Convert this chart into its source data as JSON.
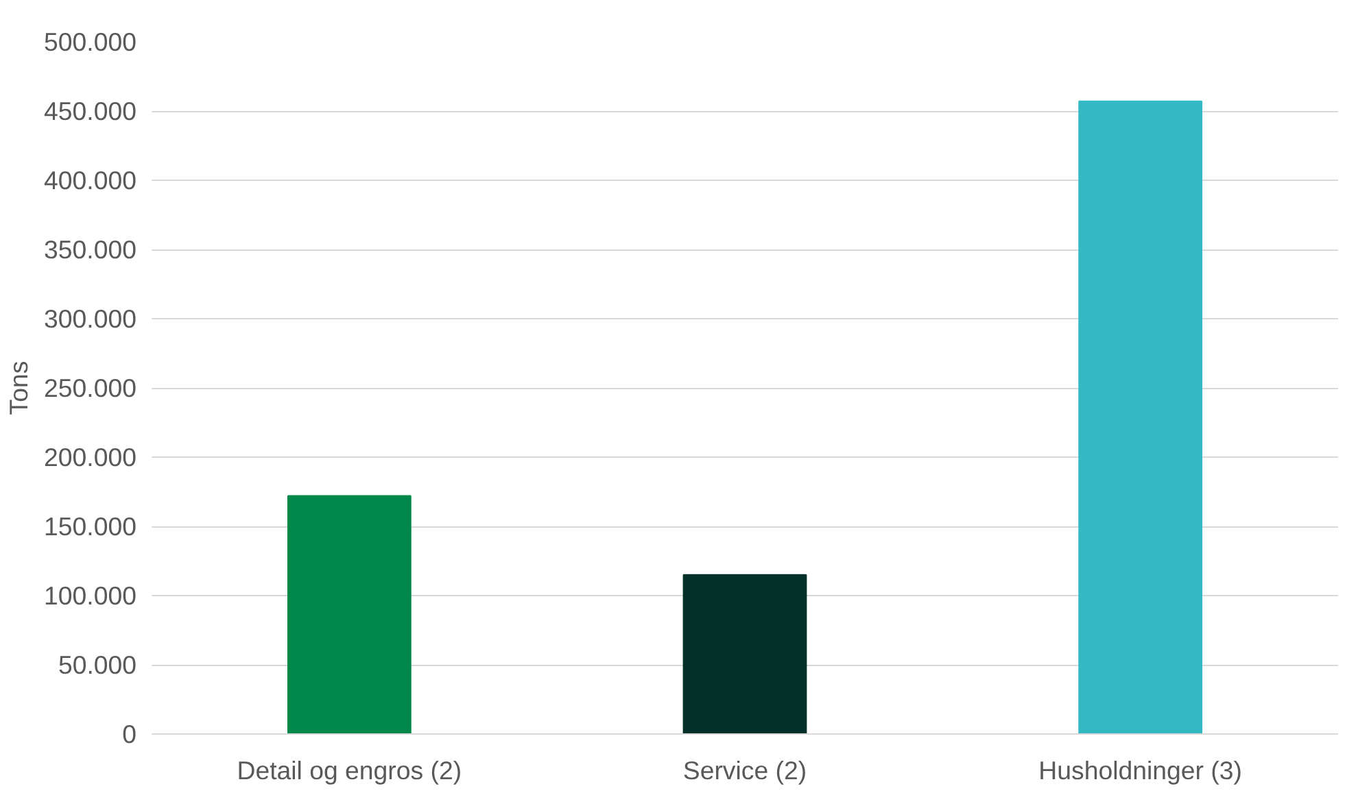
{
  "chart_data": {
    "type": "bar",
    "ylabel": "Tons",
    "categories": [
      "Detail og engros (2)",
      "Service (2)",
      "Husholdninger (3)"
    ],
    "values": [
      172000,
      115000,
      457000
    ],
    "colors": [
      "#00884a",
      "#003027",
      "#33b8c4"
    ],
    "ylim": [
      0,
      500000
    ],
    "yticks": [
      {
        "value": 0,
        "label": "0"
      },
      {
        "value": 50000,
        "label": "50.000"
      },
      {
        "value": 100000,
        "label": "100.000"
      },
      {
        "value": 150000,
        "label": "150.000"
      },
      {
        "value": 200000,
        "label": "200.000"
      },
      {
        "value": 250000,
        "label": "250.000"
      },
      {
        "value": 300000,
        "label": "300.000"
      },
      {
        "value": 350000,
        "label": "350.000"
      },
      {
        "value": 400000,
        "label": "400.000"
      },
      {
        "value": 450000,
        "label": "450.000"
      },
      {
        "value": 500000,
        "label": "500.000"
      }
    ],
    "grid": "y"
  }
}
